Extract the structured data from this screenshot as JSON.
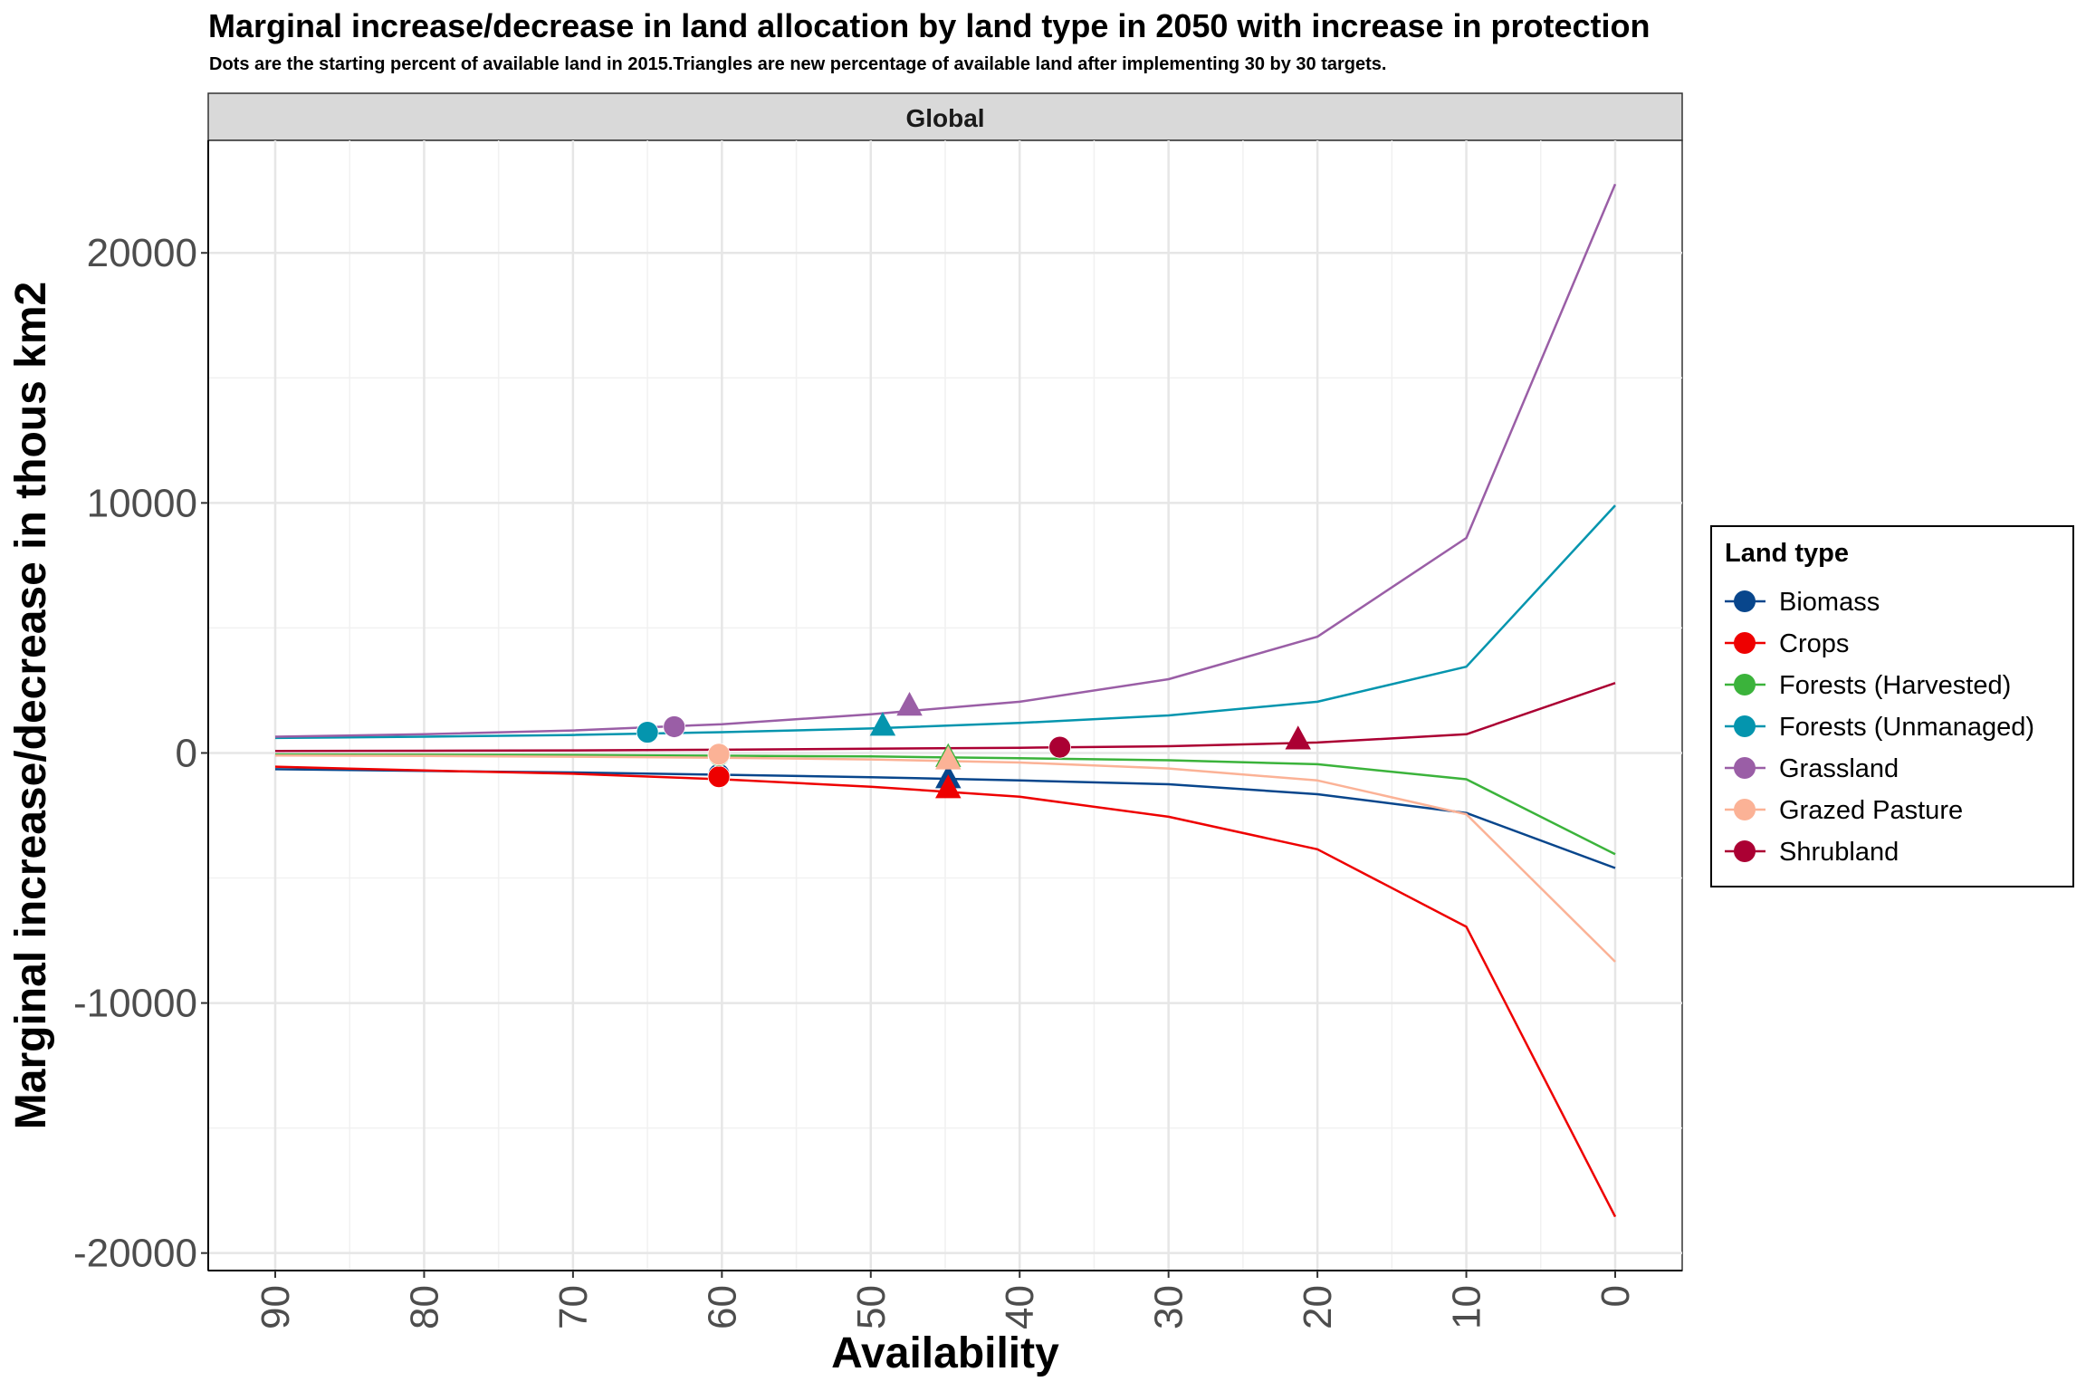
{
  "title": "Marginal increase/decrease in land allocation by land type in 2050 with increase in protection",
  "subtitle": "Dots are the starting percent of available land in 2015.Triangles are new percentage of available land after implementing 30 by 30 targets.",
  "chart_data": {
    "type": "line",
    "facet": "Global",
    "xlabel": "Availability",
    "ylabel": "Marginal increase/decrease in thous km2",
    "x_reversed": true,
    "xlim": [
      94.5,
      -4.5
    ],
    "ylim": [
      -20700,
      24500
    ],
    "x_ticks": [
      90,
      80,
      70,
      60,
      50,
      40,
      30,
      20,
      10,
      0
    ],
    "y_ticks": [
      20000,
      10000,
      0,
      -10000,
      -20000
    ],
    "y_tick_labels": [
      "20000",
      "10000",
      "0",
      "-10000",
      "-20000"
    ],
    "grid": true,
    "legend": {
      "title": "Land type",
      "position": "right"
    },
    "x": [
      90,
      80,
      70,
      60,
      50,
      40,
      30,
      20,
      10,
      0
    ],
    "series": [
      {
        "name": "Biomass",
        "color": "#08468c",
        "values": [
          -650,
          -720,
          -780,
          -870,
          -970,
          -1100,
          -1250,
          -1650,
          -2400,
          -4600
        ],
        "start_point": {
          "x": 60.2,
          "y": -850
        },
        "target_point": {
          "x": 44.8,
          "y": -1000
        }
      },
      {
        "name": "Crops",
        "color": "#ee0000",
        "values": [
          -550,
          -700,
          -830,
          -1050,
          -1350,
          -1750,
          -2550,
          -3850,
          -6950,
          -18550
        ],
        "start_point": {
          "x": 60.2,
          "y": -950
        },
        "target_point": {
          "x": 44.8,
          "y": -1400
        }
      },
      {
        "name": "Forests (Harvested)",
        "color": "#3bb33b",
        "values": [
          -60,
          -70,
          -80,
          -110,
          -140,
          -210,
          -290,
          -450,
          -1050,
          -4050
        ],
        "start_point": {
          "x": 60.2,
          "y": -100
        },
        "target_point": {
          "x": 44.8,
          "y": -150
        }
      },
      {
        "name": "Forests (Unmanaged)",
        "color": "#0495ae",
        "values": [
          600,
          650,
          720,
          830,
          980,
          1200,
          1500,
          2050,
          3450,
          9900
        ],
        "start_point": {
          "x": 65.0,
          "y": 830
        },
        "target_point": {
          "x": 49.2,
          "y": 1100
        }
      },
      {
        "name": "Grassland",
        "color": "#9a5ea6",
        "values": [
          650,
          750,
          900,
          1150,
          1550,
          2050,
          2950,
          4650,
          8600,
          22750
        ],
        "start_point": {
          "x": 63.2,
          "y": 1050
        },
        "target_point": {
          "x": 47.4,
          "y": 1900
        }
      },
      {
        "name": "Grazed Pasture",
        "color": "#fbb296",
        "values": [
          -100,
          -120,
          -150,
          -190,
          -260,
          -380,
          -620,
          -1100,
          -2450,
          -8350
        ],
        "start_point": {
          "x": 60.2,
          "y": -50
        },
        "target_point": {
          "x": 44.8,
          "y": -250
        }
      },
      {
        "name": "Shrubland",
        "color": "#ab0033",
        "values": [
          80,
          90,
          105,
          130,
          170,
          210,
          270,
          420,
          750,
          2800
        ],
        "start_point": {
          "x": 37.3,
          "y": 230
        },
        "target_point": {
          "x": 21.3,
          "y": 550
        }
      }
    ]
  }
}
